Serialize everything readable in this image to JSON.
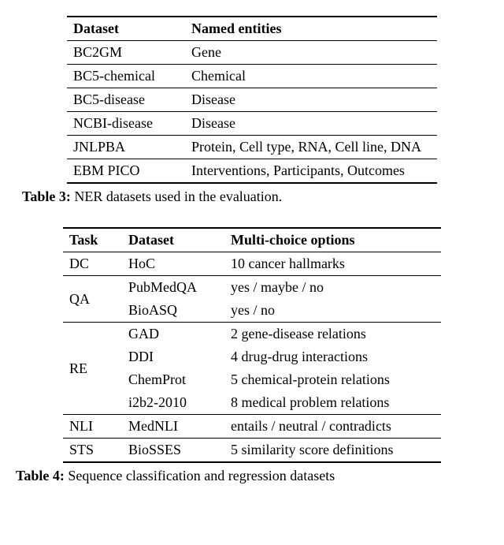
{
  "table3": {
    "headers": [
      "Dataset",
      "Named entities"
    ],
    "rows": [
      {
        "dataset": "BC2GM",
        "entities": "Gene"
      },
      {
        "dataset": "BC5-chemical",
        "entities": "Chemical"
      },
      {
        "dataset": "BC5-disease",
        "entities": "Disease"
      },
      {
        "dataset": "NCBI-disease",
        "entities": "Disease"
      },
      {
        "dataset": "JNLPBA",
        "entities": "Protein, Cell type, RNA, Cell line, DNA"
      },
      {
        "dataset": "EBM PICO",
        "entities": "Interventions, Participants, Outcomes"
      }
    ],
    "caption_label": "Table 3:",
    "caption_text": " NER datasets used in the evaluation."
  },
  "table4": {
    "headers": [
      "Task",
      "Dataset",
      "Multi-choice options"
    ],
    "groups": [
      {
        "task": "DC",
        "rows": [
          {
            "dataset": "HoC",
            "options": "10 cancer hallmarks"
          }
        ]
      },
      {
        "task": "QA",
        "rows": [
          {
            "dataset": "PubMedQA",
            "options": "yes / maybe / no"
          },
          {
            "dataset": "BioASQ",
            "options": "yes / no"
          }
        ]
      },
      {
        "task": "RE",
        "rows": [
          {
            "dataset": "GAD",
            "options": "2 gene-disease relations"
          },
          {
            "dataset": "DDI",
            "options": "4 drug-drug interactions"
          },
          {
            "dataset": "ChemProt",
            "options": "5 chemical-protein relations"
          },
          {
            "dataset": "i2b2-2010",
            "options": "8 medical problem relations"
          }
        ]
      },
      {
        "task": "NLI",
        "rows": [
          {
            "dataset": "MedNLI",
            "options": "entails / neutral / contradicts"
          }
        ]
      },
      {
        "task": "STS",
        "rows": [
          {
            "dataset": "BioSSES",
            "options": "5 similarity score definitions"
          }
        ]
      }
    ],
    "caption_label": "Table 4:",
    "caption_text": " Sequence classification and regression datasets"
  }
}
